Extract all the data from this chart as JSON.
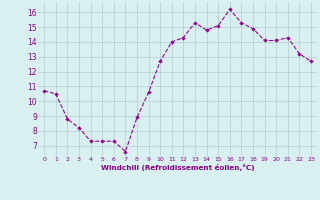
{
  "x": [
    0,
    1,
    2,
    3,
    4,
    5,
    6,
    7,
    8,
    9,
    10,
    11,
    12,
    13,
    14,
    15,
    16,
    17,
    18,
    19,
    20,
    21,
    22,
    23
  ],
  "y": [
    10.7,
    10.5,
    8.8,
    8.2,
    7.3,
    7.3,
    7.3,
    6.6,
    8.9,
    10.6,
    12.7,
    14.0,
    14.3,
    15.3,
    14.8,
    15.1,
    16.2,
    15.3,
    14.9,
    14.1,
    14.1,
    14.3,
    13.2,
    12.7
  ],
  "line_color": "#990099",
  "marker": "D",
  "marker_size": 2.2,
  "bg_color": "#d8f0f0",
  "grid_color": "#b0cece",
  "xlabel": "Windchill (Refroidissement éolien,°C)",
  "xlabel_color": "#880088",
  "tick_color": "#880088",
  "ylim": [
    6.3,
    16.7
  ],
  "xlim": [
    -0.5,
    23.5
  ],
  "yticks": [
    7,
    8,
    9,
    10,
    11,
    12,
    13,
    14,
    15,
    16
  ],
  "xticks": [
    0,
    1,
    2,
    3,
    4,
    5,
    6,
    7,
    8,
    9,
    10,
    11,
    12,
    13,
    14,
    15,
    16,
    17,
    18,
    19,
    20,
    21,
    22,
    23
  ]
}
